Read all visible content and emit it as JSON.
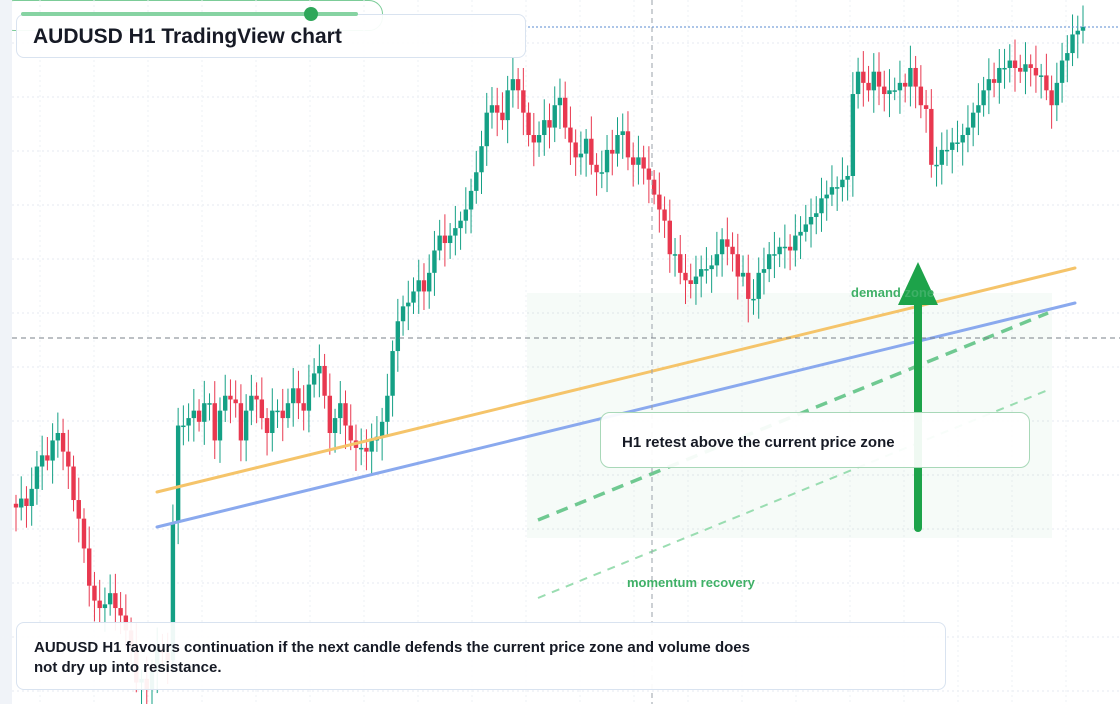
{
  "title": "AUDUSD H1 TradingView chart",
  "callouts": {
    "retest": "H1 retest above the current price zone",
    "demand": "demand zone",
    "momentum": "momentum recovery",
    "note": "AUDUSD H1 favours continuation if the next candle defends the current price zone and volume does not dry up into resistance."
  },
  "momentum_level": 0.86,
  "colors": {
    "bull": "#14a085",
    "bear": "#e8384f",
    "ema_fast": "#f5c46a",
    "ema_slow": "#8aa9ee",
    "zone": "#2fa75a",
    "arrow": "#1da34a"
  },
  "chart_data": {
    "type": "candlestick",
    "symbol": "AUDUSD",
    "timeframe": "H1",
    "price_levels": {
      "high": 0.9,
      "low": 0.1,
      "note": "unlabeled axis; prices normalized 0-1"
    },
    "open": [
      0.265,
      0.26,
      0.272,
      0.262,
      0.285,
      0.315,
      0.33,
      0.323,
      0.35,
      0.36,
      0.335,
      0.315,
      0.27,
      0.245,
      0.205,
      0.155,
      0.135,
      0.125,
      0.13,
      0.145,
      0.125,
      0.115,
      0.095,
      0.075,
      0.025,
      0.03,
      0.015,
      0.04,
      0.07,
      0.065,
      0.055,
      0.24,
      0.37,
      0.37,
      0.38,
      0.39,
      0.375,
      0.4,
      0.4,
      0.35,
      0.39,
      0.41,
      0.405,
      0.4,
      0.35,
      0.39,
      0.41,
      0.405,
      0.38,
      0.36,
      0.39,
      0.39,
      0.38,
      0.4,
      0.42,
      0.4,
      0.39,
      0.425,
      0.44,
      0.45,
      0.41,
      0.36,
      0.38,
      0.4,
      0.37,
      0.35,
      0.34,
      0.34,
      0.335,
      0.35,
      0.355,
      0.375,
      0.41,
      0.47,
      0.51,
      0.53,
      0.535,
      0.55,
      0.565,
      0.55,
      0.575,
      0.605,
      0.625,
      0.615,
      0.625,
      0.635,
      0.645,
      0.66,
      0.685,
      0.71,
      0.745,
      0.79,
      0.8,
      0.79,
      0.78,
      0.82,
      0.835,
      0.82,
      0.79,
      0.76,
      0.75,
      0.76,
      0.78,
      0.77,
      0.8,
      0.81,
      0.77,
      0.75,
      0.73,
      0.735,
      0.755,
      0.72,
      0.71,
      0.71,
      0.74,
      0.735,
      0.76,
      0.765,
      0.73,
      0.72,
      0.73,
      0.715,
      0.7,
      0.68,
      0.66,
      0.645,
      0.6,
      0.6,
      0.575,
      0.565,
      0.56,
      0.57,
      0.58,
      0.58,
      0.585,
      0.6,
      0.62,
      0.61,
      0.6,
      0.57,
      0.575,
      0.54,
      0.54,
      0.575,
      0.58,
      0.6,
      0.6,
      0.61,
      0.61,
      0.605,
      0.625,
      0.63,
      0.64,
      0.65,
      0.655,
      0.675,
      0.68,
      0.69,
      0.69,
      0.7,
      0.705,
      0.815,
      0.845,
      0.83,
      0.82,
      0.845,
      0.825,
      0.815,
      0.82,
      0.82,
      0.83,
      0.825,
      0.85,
      0.825,
      0.8,
      0.795,
      0.72,
      0.72,
      0.74,
      0.74,
      0.75,
      0.75,
      0.76,
      0.77,
      0.79,
      0.8,
      0.82,
      0.835,
      0.83,
      0.85,
      0.85,
      0.86,
      0.85,
      0.845,
      0.855,
      0.85,
      0.84,
      0.84,
      0.82,
      0.8,
      0.83,
      0.86,
      0.87,
      0.895,
      0.9
    ],
    "close": [
      0.26,
      0.272,
      0.262,
      0.285,
      0.315,
      0.33,
      0.323,
      0.35,
      0.36,
      0.335,
      0.315,
      0.27,
      0.245,
      0.205,
      0.155,
      0.135,
      0.125,
      0.13,
      0.145,
      0.125,
      0.115,
      0.095,
      0.075,
      0.025,
      0.03,
      0.015,
      0.04,
      0.07,
      0.065,
      0.055,
      0.24,
      0.37,
      0.37,
      0.38,
      0.39,
      0.375,
      0.4,
      0.4,
      0.35,
      0.39,
      0.41,
      0.405,
      0.4,
      0.35,
      0.39,
      0.41,
      0.405,
      0.38,
      0.36,
      0.39,
      0.39,
      0.38,
      0.4,
      0.42,
      0.4,
      0.39,
      0.425,
      0.44,
      0.45,
      0.41,
      0.36,
      0.38,
      0.4,
      0.37,
      0.35,
      0.34,
      0.34,
      0.335,
      0.35,
      0.355,
      0.375,
      0.41,
      0.47,
      0.51,
      0.53,
      0.535,
      0.55,
      0.565,
      0.55,
      0.575,
      0.605,
      0.625,
      0.615,
      0.625,
      0.635,
      0.645,
      0.66,
      0.685,
      0.71,
      0.745,
      0.79,
      0.8,
      0.79,
      0.78,
      0.82,
      0.835,
      0.82,
      0.79,
      0.76,
      0.75,
      0.76,
      0.78,
      0.77,
      0.8,
      0.81,
      0.77,
      0.75,
      0.73,
      0.735,
      0.755,
      0.72,
      0.71,
      0.71,
      0.74,
      0.735,
      0.76,
      0.765,
      0.73,
      0.72,
      0.73,
      0.715,
      0.7,
      0.68,
      0.66,
      0.645,
      0.6,
      0.6,
      0.575,
      0.565,
      0.56,
      0.57,
      0.58,
      0.58,
      0.585,
      0.6,
      0.62,
      0.61,
      0.6,
      0.57,
      0.575,
      0.54,
      0.54,
      0.575,
      0.58,
      0.6,
      0.6,
      0.61,
      0.61,
      0.605,
      0.625,
      0.63,
      0.64,
      0.65,
      0.655,
      0.675,
      0.68,
      0.69,
      0.69,
      0.7,
      0.705,
      0.815,
      0.845,
      0.83,
      0.82,
      0.845,
      0.825,
      0.815,
      0.82,
      0.82,
      0.83,
      0.825,
      0.85,
      0.825,
      0.8,
      0.795,
      0.72,
      0.72,
      0.74,
      0.74,
      0.75,
      0.75,
      0.76,
      0.77,
      0.79,
      0.8,
      0.82,
      0.835,
      0.83,
      0.85,
      0.85,
      0.86,
      0.85,
      0.845,
      0.855,
      0.85,
      0.84,
      0.84,
      0.82,
      0.8,
      0.83,
      0.86,
      0.87,
      0.895,
      0.9,
      0.905
    ]
  }
}
